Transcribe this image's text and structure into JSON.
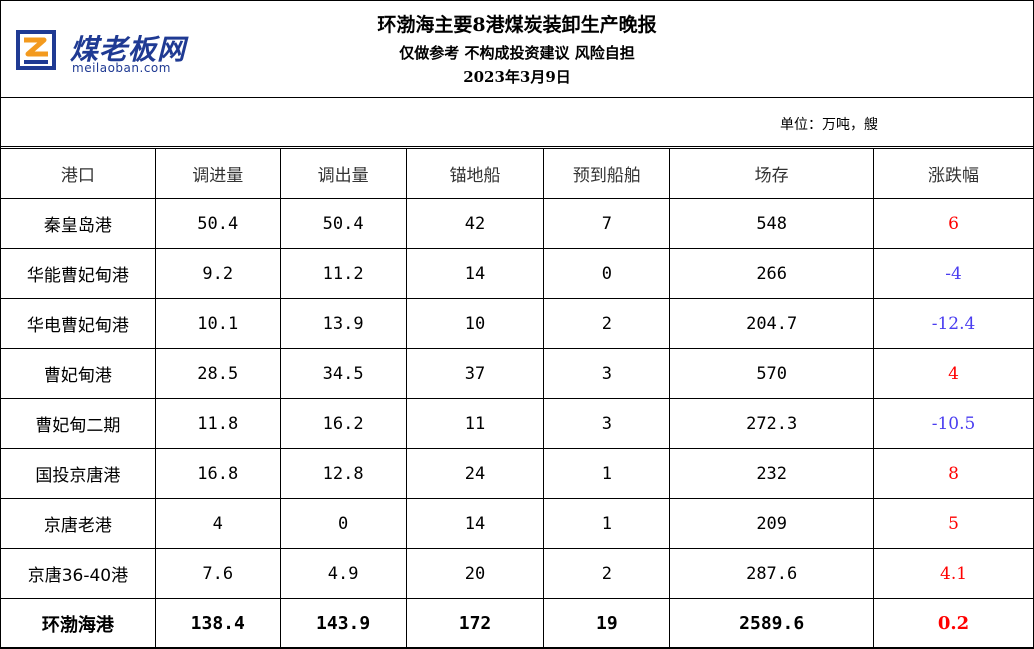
{
  "header": {
    "logo_text": "煤老板网",
    "logo_sub": "meilaoban.com",
    "title": "环渤海主要8港煤炭装卸生产晚报",
    "subtitle": "仅做参考 不构成投资建议 风险自担",
    "date": "2023年3月9日"
  },
  "unit": "单位：万吨，艘",
  "colors": {
    "up": "#ff0000",
    "down": "#4a3df0",
    "brand": "#1f3a93"
  },
  "table": {
    "columns": [
      "港口",
      "调进量",
      "调出量",
      "锚地船",
      "预到船舶",
      "场存",
      "涨跌幅"
    ],
    "rows": [
      {
        "port": "秦皇岛港",
        "in": "50.4",
        "out": "50.4",
        "anchor": "42",
        "expected": "7",
        "stock": "548",
        "change": "6",
        "dir": "up"
      },
      {
        "port": "华能曹妃甸港",
        "in": "9.2",
        "out": "11.2",
        "anchor": "14",
        "expected": "0",
        "stock": "266",
        "change": "-4",
        "dir": "down"
      },
      {
        "port": "华电曹妃甸港",
        "in": "10.1",
        "out": "13.9",
        "anchor": "10",
        "expected": "2",
        "stock": "204.7",
        "change": "-12.4",
        "dir": "down"
      },
      {
        "port": "曹妃甸港",
        "in": "28.5",
        "out": "34.5",
        "anchor": "37",
        "expected": "3",
        "stock": "570",
        "change": "4",
        "dir": "up"
      },
      {
        "port": "曹妃甸二期",
        "in": "11.8",
        "out": "16.2",
        "anchor": "11",
        "expected": "3",
        "stock": "272.3",
        "change": "-10.5",
        "dir": "down"
      },
      {
        "port": "国投京唐港",
        "in": "16.8",
        "out": "12.8",
        "anchor": "24",
        "expected": "1",
        "stock": "232",
        "change": "8",
        "dir": "up"
      },
      {
        "port": "京唐老港",
        "in": "4",
        "out": "0",
        "anchor": "14",
        "expected": "1",
        "stock": "209",
        "change": "5",
        "dir": "up"
      },
      {
        "port": "京唐36-40港",
        "in": "7.6",
        "out": "4.9",
        "anchor": "20",
        "expected": "2",
        "stock": "287.6",
        "change": "4.1",
        "dir": "up"
      }
    ],
    "total": {
      "port": "环渤海港",
      "in": "138.4",
      "out": "143.9",
      "anchor": "172",
      "expected": "19",
      "stock": "2589.6",
      "change": "0.2",
      "dir": "up"
    }
  }
}
